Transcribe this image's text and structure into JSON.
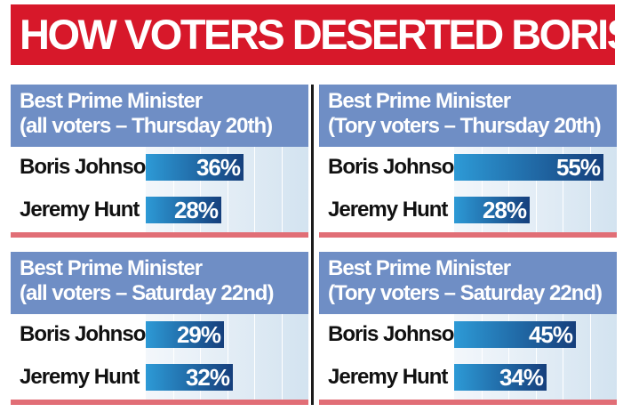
{
  "headline": "HOW VOTERS DESERTED BORIS",
  "colors": {
    "headline_bg": "#d7182a",
    "panel_header_bg": "#6f8ec5",
    "bar_start": "#2d9ad6",
    "bar_end": "#163f7c",
    "rule": "#e16e76"
  },
  "chart_data": [
    {
      "type": "bar",
      "orientation": "horizontal",
      "title": "Best Prime Minister",
      "subtitle": "(all voters – Thursday 20th)",
      "categories": [
        "Boris Johnson",
        "Jeremy Hunt"
      ],
      "values": [
        36,
        28
      ],
      "value_labels": [
        "36%",
        "28%"
      ],
      "xlim": [
        0,
        60
      ]
    },
    {
      "type": "bar",
      "orientation": "horizontal",
      "title": "Best Prime Minister",
      "subtitle": "(Tory voters – Thursday 20th)",
      "categories": [
        "Boris Johnson",
        "Jeremy Hunt"
      ],
      "values": [
        55,
        28
      ],
      "value_labels": [
        "55%",
        "28%"
      ],
      "xlim": [
        0,
        60
      ]
    },
    {
      "type": "bar",
      "orientation": "horizontal",
      "title": "Best Prime Minister",
      "subtitle": "(all voters – Saturday 22nd)",
      "categories": [
        "Boris Johnson",
        "Jeremy Hunt"
      ],
      "values": [
        29,
        32
      ],
      "value_labels": [
        "29%",
        "32%"
      ],
      "xlim": [
        0,
        60
      ]
    },
    {
      "type": "bar",
      "orientation": "horizontal",
      "title": "Best Prime Minister",
      "subtitle": "(Tory voters – Saturday 22nd)",
      "categories": [
        "Boris Johnson",
        "Jeremy Hunt"
      ],
      "values": [
        45,
        34
      ],
      "value_labels": [
        "45%",
        "34%"
      ],
      "xlim": [
        0,
        60
      ]
    }
  ]
}
